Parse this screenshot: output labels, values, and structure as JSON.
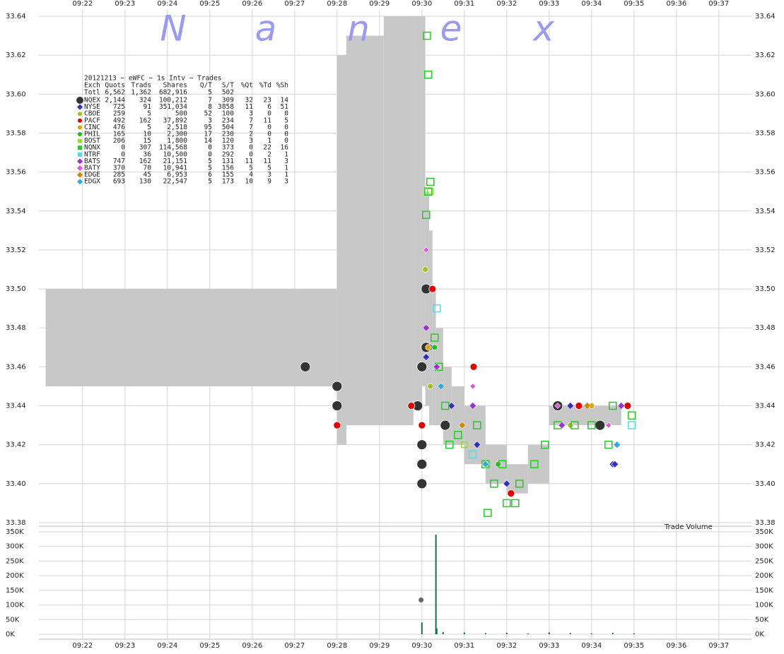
{
  "chart_data": [
    {
      "type": "scatter",
      "watermark": [
        "N",
        "a",
        "n",
        "e",
        "x"
      ],
      "xlim": [
        560.97,
        577.77
      ],
      "xticks": [
        {
          "value": 562,
          "label": "09:22"
        },
        {
          "value": 563,
          "label": "09:23"
        },
        {
          "value": 564,
          "label": "09:24"
        },
        {
          "value": 565,
          "label": "09:25"
        },
        {
          "value": 566,
          "label": "09:26"
        },
        {
          "value": 567,
          "label": "09:27"
        },
        {
          "value": 568,
          "label": "09:28"
        },
        {
          "value": 569,
          "label": "09:29"
        },
        {
          "value": 570,
          "label": "09:30"
        },
        {
          "value": 571,
          "label": "09:31"
        },
        {
          "value": 572,
          "label": "09:32"
        },
        {
          "value": 573,
          "label": "09:33"
        },
        {
          "value": 574,
          "label": "09:34"
        },
        {
          "value": 575,
          "label": "09:35"
        },
        {
          "value": 576,
          "label": "09:36"
        },
        {
          "value": 577,
          "label": "09:37"
        }
      ],
      "ylim": [
        33.38,
        33.64
      ],
      "yticks": [
        {
          "value": 33.38,
          "label": "33.38"
        },
        {
          "value": 33.4,
          "label": "33.40"
        },
        {
          "value": 33.42,
          "label": "33.42"
        },
        {
          "value": 33.44,
          "label": "33.44"
        },
        {
          "value": 33.46,
          "label": "33.46"
        },
        {
          "value": 33.48,
          "label": "33.48"
        },
        {
          "value": 33.5,
          "label": "33.50"
        },
        {
          "value": 33.52,
          "label": "33.52"
        },
        {
          "value": 33.54,
          "label": "33.54"
        },
        {
          "value": 33.56,
          "label": "33.56"
        },
        {
          "value": 33.58,
          "label": "33.58"
        },
        {
          "value": 33.6,
          "label": "33.60"
        },
        {
          "value": 33.62,
          "label": "33.62"
        },
        {
          "value": 33.64,
          "label": "33.64"
        }
      ],
      "grid": true,
      "band_color": "#c8c8c8",
      "band_edges": [
        561.13,
        568.0,
        568.22,
        569.1,
        569.8,
        570.0,
        570.08,
        570.17,
        570.25,
        570.33,
        570.5,
        570.7,
        571.0,
        571.5,
        572.0,
        572.5,
        573.0,
        574.7
      ],
      "band_high": [
        33.5,
        33.62,
        33.63,
        33.64,
        33.64,
        33.64,
        33.55,
        33.53,
        33.5,
        33.48,
        33.46,
        33.45,
        33.44,
        33.42,
        33.41,
        33.42,
        33.44
      ],
      "band_low": [
        33.45,
        33.42,
        33.43,
        33.43,
        33.44,
        33.45,
        33.44,
        33.43,
        33.43,
        33.43,
        33.42,
        33.42,
        33.41,
        33.4,
        33.395,
        33.4,
        33.43
      ],
      "table": {
        "title": "20121213 ~ eWFC ~ 1s Intv ~ Trades",
        "header": [
          "Exch",
          "Quots",
          "Trads",
          "Shares",
          "Q/T",
          "S/T",
          "%Qt",
          "%Td",
          "%Sh"
        ],
        "total": [
          "Totl",
          "6,562",
          "1,362",
          "682,916",
          "5",
          "502"
        ]
      },
      "series": [
        {
          "name": "NQEX",
          "color": "#333333",
          "marker": "circle",
          "size": 7,
          "stats": [
            "2,144",
            "324",
            "100,212",
            "7",
            "309",
            "32",
            "23",
            "14"
          ],
          "x": [
            567.25,
            568.0,
            568.0,
            569.9,
            570.0,
            570.0,
            570.0,
            570.0,
            570.1,
            570.1,
            570.55,
            573.2,
            574.2
          ],
          "values": [
            33.46,
            33.45,
            33.44,
            33.44,
            33.46,
            33.42,
            33.41,
            33.4,
            33.47,
            33.5,
            33.43,
            33.44,
            33.43
          ]
        },
        {
          "name": "NYSE",
          "color": "#3030c0",
          "marker": "diamond",
          "size": 5,
          "stats": [
            "725",
            "91",
            "351,034",
            "8",
            "3858",
            "11",
            "6",
            "51"
          ],
          "x": [
            570.1,
            570.2,
            570.7,
            571.3,
            572.0,
            573.5,
            574.5,
            574.55
          ],
          "values": [
            33.465,
            33.47,
            33.44,
            33.42,
            33.4,
            33.44,
            33.41,
            33.41
          ]
        },
        {
          "name": "CBOE",
          "color": "#a0c020",
          "marker": "circle",
          "size": 4,
          "stats": [
            "259",
            "5",
            "500",
            "52",
            "100",
            "3",
            "0",
            "0"
          ],
          "x": [
            570.08,
            570.2,
            573.5
          ],
          "values": [
            33.51,
            33.45,
            33.43
          ]
        },
        {
          "name": "PACF",
          "color": "#e00000",
          "marker": "circle",
          "size": 5,
          "stats": [
            "492",
            "162",
            "37,892",
            "3",
            "234",
            "7",
            "11",
            "5"
          ],
          "x": [
            568.0,
            569.75,
            570.0,
            570.25,
            571.22,
            572.1,
            573.7,
            574.85
          ],
          "values": [
            33.43,
            33.44,
            33.43,
            33.5,
            33.46,
            33.395,
            33.44,
            33.44
          ]
        },
        {
          "name": "CINC",
          "color": "#e0a000",
          "marker": "circle",
          "size": 4,
          "stats": [
            "476",
            "5",
            "2,518",
            "95",
            "504",
            "7",
            "0",
            "0"
          ],
          "x": [
            570.15,
            574.0
          ],
          "values": [
            33.47,
            33.44
          ]
        },
        {
          "name": "PHIL",
          "color": "#22bb22",
          "marker": "circle",
          "size": 4,
          "stats": [
            "165",
            "10",
            "2,300",
            "17",
            "230",
            "2",
            "0",
            "0"
          ],
          "x": [
            570.3,
            571.8
          ],
          "values": [
            33.47,
            33.41
          ]
        },
        {
          "name": "BOST",
          "color": "#99dd33",
          "marker": "square",
          "size": 4,
          "stats": [
            "206",
            "15",
            "1,800",
            "14",
            "120",
            "3",
            "1",
            "0"
          ],
          "x": [
            570.2,
            571.0
          ],
          "values": [
            33.55,
            33.42
          ]
        },
        {
          "name": "NQNX",
          "color": "#22cc22",
          "marker": "square",
          "size": 5,
          "stats": [
            "0",
            "307",
            "114,568",
            "0",
            "373",
            "0",
            "22",
            "16"
          ],
          "x": [
            570.12,
            570.15,
            570.2,
            570.15,
            570.1,
            570.3,
            570.4,
            570.55,
            570.85,
            570.65,
            571.3,
            571.5,
            571.7,
            571.9,
            572.0,
            572.3,
            572.65,
            572.9,
            573.2,
            573.6,
            574.0,
            574.4,
            574.5,
            574.95,
            571.55,
            572.2
          ],
          "values": [
            33.63,
            33.61,
            33.555,
            33.55,
            33.538,
            33.475,
            33.46,
            33.44,
            33.425,
            33.42,
            33.43,
            33.41,
            33.4,
            33.41,
            33.39,
            33.4,
            33.41,
            33.42,
            33.43,
            33.43,
            33.43,
            33.42,
            33.44,
            33.435,
            33.385,
            33.39
          ]
        },
        {
          "name": "NTRF",
          "color": "#55dddd",
          "marker": "square",
          "size": 5,
          "stats": [
            "0",
            "36",
            "10,500",
            "0",
            "292",
            "0",
            "2",
            "1"
          ],
          "x": [
            570.35,
            574.95,
            571.2
          ],
          "values": [
            33.49,
            33.43,
            33.415
          ]
        },
        {
          "name": "BATS",
          "color": "#9933cc",
          "marker": "diamond",
          "size": 5,
          "stats": [
            "747",
            "162",
            "21,151",
            "5",
            "131",
            "11",
            "11",
            "3"
          ],
          "x": [
            570.1,
            570.35,
            571.2,
            573.3,
            574.7
          ],
          "values": [
            33.48,
            33.46,
            33.44,
            33.43,
            33.44
          ]
        },
        {
          "name": "BATY",
          "color": "#dd55dd",
          "marker": "diamond",
          "size": 4,
          "stats": [
            "370",
            "70",
            "10,941",
            "5",
            "156",
            "5",
            "5",
            "1"
          ],
          "x": [
            570.1,
            571.2,
            573.2,
            574.4
          ],
          "values": [
            33.52,
            33.45,
            33.44,
            33.43
          ]
        },
        {
          "name": "EDGE",
          "color": "#cc8800",
          "marker": "diamond",
          "size": 5,
          "stats": [
            "285",
            "45",
            "6,953",
            "6",
            "155",
            "4",
            "3",
            "1"
          ],
          "x": [
            570.95,
            573.9
          ],
          "values": [
            33.43,
            33.44
          ]
        },
        {
          "name": "EDGX",
          "color": "#33aadd",
          "marker": "diamond",
          "size": 5,
          "stats": [
            "693",
            "130",
            "22,547",
            "5",
            "173",
            "10",
            "9",
            "3"
          ],
          "x": [
            570.45,
            571.5,
            574.6
          ],
          "values": [
            33.45,
            33.41,
            33.42
          ]
        }
      ]
    },
    {
      "type": "bar",
      "title": "Trade Volume",
      "xlim": [
        560.97,
        577.77
      ],
      "xticks": [
        {
          "value": 562,
          "label": "09:22"
        },
        {
          "value": 563,
          "label": "09:23"
        },
        {
          "value": 564,
          "label": "09:24"
        },
        {
          "value": 565,
          "label": "09:25"
        },
        {
          "value": 566,
          "label": "09:26"
        },
        {
          "value": 567,
          "label": "09:27"
        },
        {
          "value": 568,
          "label": "09:28"
        },
        {
          "value": 569,
          "label": "09:29"
        },
        {
          "value": 570,
          "label": "09:30"
        },
        {
          "value": 571,
          "label": "09:31"
        },
        {
          "value": 572,
          "label": "09:32"
        },
        {
          "value": 573,
          "label": "09:33"
        },
        {
          "value": 574,
          "label": "09:34"
        },
        {
          "value": 575,
          "label": "09:35"
        },
        {
          "value": 576,
          "label": "09:36"
        },
        {
          "value": 577,
          "label": "09:37"
        }
      ],
      "ylim": [
        0,
        350000
      ],
      "yticks": [
        {
          "value": 0,
          "label": "0K"
        },
        {
          "value": 50000,
          "label": "50K"
        },
        {
          "value": 100000,
          "label": "100K"
        },
        {
          "value": 150000,
          "label": "150K"
        },
        {
          "value": 200000,
          "label": "200K"
        },
        {
          "value": 250000,
          "label": "250K"
        },
        {
          "value": 300000,
          "label": "300K"
        },
        {
          "value": 350000,
          "label": "350K"
        }
      ],
      "color": "#1f6a55",
      "x": [
        570.0,
        570.33,
        570.35,
        570.5,
        571.0,
        571.5,
        572.0,
        572.5,
        573.0,
        573.5,
        574.0,
        574.5,
        575.0
      ],
      "values": [
        40000,
        340000,
        20000,
        8000,
        6000,
        4000,
        5000,
        3000,
        6000,
        4000,
        3000,
        5000,
        3000
      ],
      "marker_color": "#666666",
      "marker_x": [
        569.98
      ],
      "marker_values": [
        117000
      ]
    }
  ]
}
